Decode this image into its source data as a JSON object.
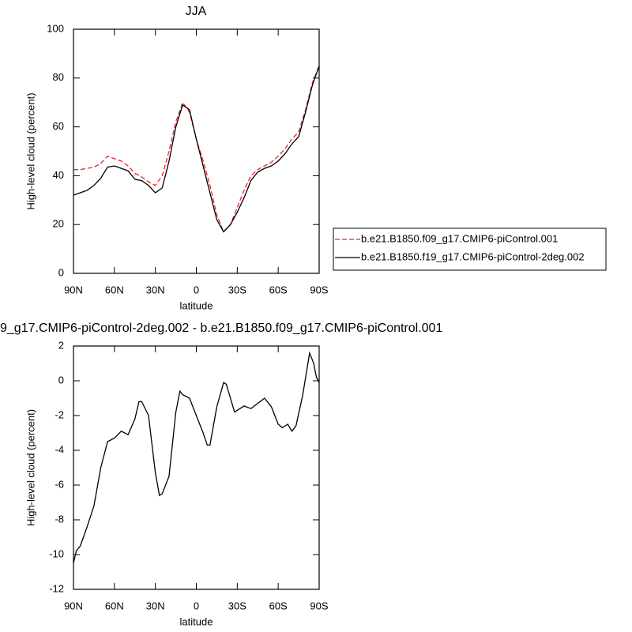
{
  "chart_data": [
    {
      "type": "line",
      "title": "JJA",
      "xlabel": "latitude",
      "ylabel": "High-level cloud (percent)",
      "x": [
        90,
        85,
        80,
        75,
        70,
        65,
        60,
        55,
        50,
        45,
        40,
        35,
        30,
        25,
        20,
        15,
        10,
        5,
        0,
        -5,
        -10,
        -15,
        -20,
        -25,
        -30,
        -35,
        -40,
        -45,
        -50,
        -55,
        -60,
        -65,
        -70,
        -75,
        -80,
        -85,
        -90
      ],
      "series": [
        {
          "name": "b.e21.B1850.f09_g17.CMIP6-piControl.001",
          "color": "#e8262a",
          "dash": true,
          "values": [
            42.5,
            42.5,
            43,
            43.5,
            45,
            48,
            47,
            46,
            44,
            41,
            39.5,
            37.5,
            36,
            40,
            50,
            62,
            70,
            66,
            55,
            46,
            36,
            24,
            17,
            20,
            27,
            34,
            40,
            42.5,
            44,
            45.5,
            48,
            51,
            55,
            58,
            67,
            78,
            85
          ]
        },
        {
          "name": "b.e21.B1850.f19_g17.CMIP6-piControl-2deg.002",
          "color": "#000000",
          "dash": false,
          "values": [
            32,
            33,
            34,
            36,
            39,
            43.5,
            44,
            43,
            42,
            38.5,
            38,
            36,
            33,
            35,
            46,
            60,
            69,
            67,
            55,
            44,
            33,
            22,
            17,
            20,
            25,
            31,
            38,
            41.5,
            43,
            44,
            46,
            49,
            53,
            56,
            66,
            77,
            85
          ]
        }
      ],
      "xlim": [
        90,
        -90
      ],
      "xticks": [
        {
          "value": 90,
          "label": "90N"
        },
        {
          "value": 60,
          "label": "60N"
        },
        {
          "value": 30,
          "label": "30N"
        },
        0,
        {
          "value": -30,
          "label": "30S"
        },
        {
          "value": -60,
          "label": "60S"
        },
        {
          "value": -90,
          "label": "90S"
        }
      ],
      "ylim": [
        0,
        100
      ],
      "yticks": [
        0,
        20,
        40,
        60,
        80,
        100
      ],
      "legend": "outside-right"
    },
    {
      "type": "line",
      "title": "9_g17.CMIP6-piControl-2deg.002 - b.e21.B1850.f09_g17.CMIP6-piControl.001",
      "xlabel": "latitude",
      "ylabel": "High-level cloud (percent)",
      "x": [
        90,
        88,
        85,
        80,
        75,
        70,
        65,
        60,
        55,
        50,
        45,
        42,
        40,
        35,
        30,
        27,
        25,
        20,
        15,
        12,
        10,
        5,
        0,
        -5,
        -8,
        -10,
        -15,
        -20,
        -22,
        -25,
        -28,
        -32,
        -35,
        -40,
        -45,
        -50,
        -55,
        -60,
        -63,
        -67,
        -70,
        -73,
        -78,
        -83,
        -86,
        -88,
        -90
      ],
      "series": [
        {
          "color": "#000000",
          "dash": false,
          "values": [
            -10.5,
            -9.8,
            -9.5,
            -8.4,
            -7.2,
            -5,
            -3.5,
            -3.3,
            -2.9,
            -3.1,
            -2.2,
            -1.2,
            -1.2,
            -2,
            -5.3,
            -6.6,
            -6.5,
            -5.5,
            -1.8,
            -0.6,
            -0.8,
            -1,
            -2,
            -3,
            -3.7,
            -3.7,
            -1.5,
            -0.1,
            -0.2,
            -1,
            -1.8,
            -1.6,
            -1.45,
            -1.6,
            -1.3,
            -1,
            -1.5,
            -2.5,
            -2.7,
            -2.5,
            -2.9,
            -2.6,
            -0.8,
            1.6,
            1,
            0.2,
            -0.1
          ]
        }
      ],
      "xlim": [
        90,
        -90
      ],
      "xticks": [
        {
          "value": 90,
          "label": "90N"
        },
        {
          "value": 60,
          "label": "60N"
        },
        {
          "value": 30,
          "label": "30N"
        },
        0,
        {
          "value": -30,
          "label": "30S"
        },
        {
          "value": -60,
          "label": "60S"
        },
        {
          "value": -90,
          "label": "90S"
        }
      ],
      "ylim": [
        -12,
        2
      ],
      "yticks": [
        -12,
        -10,
        -8,
        -6,
        -4,
        -2,
        0,
        2
      ]
    }
  ]
}
